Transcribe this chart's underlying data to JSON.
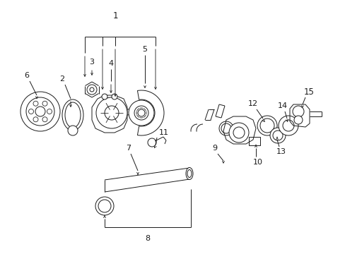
{
  "bg_color": "#ffffff",
  "line_color": "#1a1a1a",
  "fig_width": 4.89,
  "fig_height": 3.6,
  "dpi": 100,
  "parts_scale": 1.0
}
